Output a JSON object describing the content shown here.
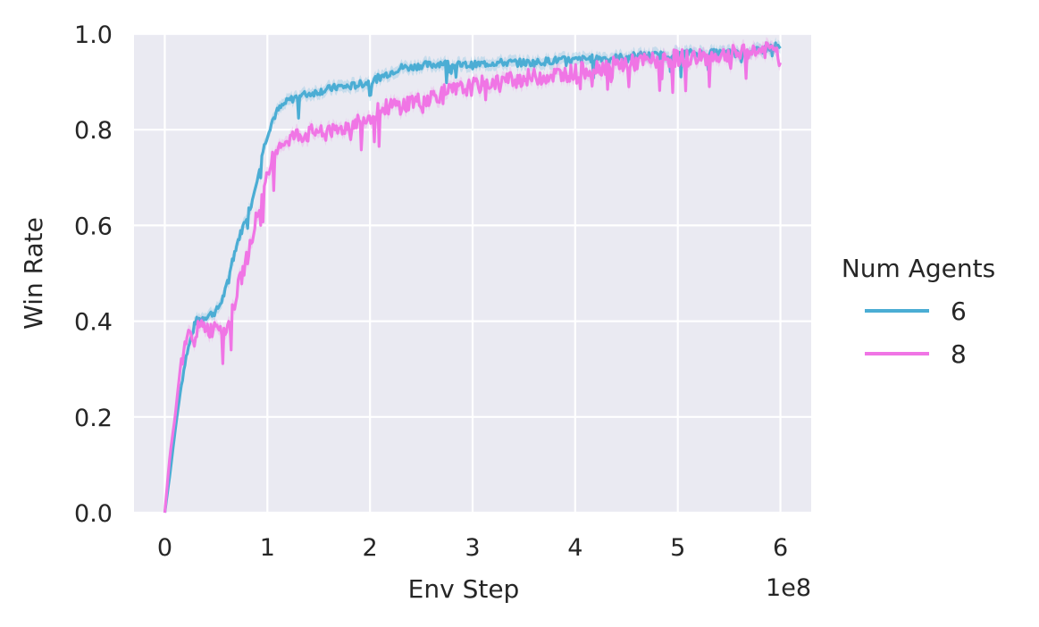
{
  "chart_data": {
    "type": "line",
    "title": "",
    "xlabel": "Env Step",
    "ylabel": "Win Rate",
    "x_offset_text": "1e8",
    "xlim": [
      -0.3,
      6.3
    ],
    "ylim": [
      0.0,
      1.0
    ],
    "x_ticks": [
      0,
      1,
      2,
      3,
      4,
      5,
      6
    ],
    "y_ticks": [
      0.0,
      0.2,
      0.4,
      0.6,
      0.8,
      1.0
    ],
    "x_tick_labels": [
      "0",
      "1",
      "2",
      "3",
      "4",
      "5",
      "6"
    ],
    "y_tick_labels": [
      "0.0",
      "0.2",
      "0.4",
      "0.6",
      "0.8",
      "1.0"
    ],
    "grid": true,
    "background": "#eaeaf2",
    "legend": {
      "title": "Num Agents",
      "placement": "right-outside",
      "entries": [
        "6",
        "8"
      ]
    },
    "series": [
      {
        "name": "6",
        "color": "#4badd4",
        "x": [
          0,
          0.05,
          0.1,
          0.15,
          0.2,
          0.25,
          0.3,
          0.4,
          0.5,
          0.55,
          0.6,
          0.65,
          0.7,
          0.8,
          0.85,
          0.9,
          0.95,
          1.0,
          1.05,
          1.1,
          1.15,
          1.2,
          1.3,
          1.4,
          1.5,
          1.6,
          1.7,
          1.8,
          1.9,
          2.0,
          2.1,
          2.2,
          2.3,
          2.4,
          2.5,
          2.6,
          2.7,
          2.8,
          3.0,
          3.2,
          3.4,
          3.6,
          3.8,
          4.0,
          4.2,
          4.4,
          4.6,
          4.8,
          5.0,
          5.2,
          5.4,
          5.6,
          5.8,
          5.95,
          6.0
        ],
        "y": [
          0.0,
          0.08,
          0.17,
          0.25,
          0.32,
          0.36,
          0.4,
          0.41,
          0.42,
          0.44,
          0.47,
          0.52,
          0.56,
          0.62,
          0.65,
          0.7,
          0.75,
          0.79,
          0.82,
          0.84,
          0.85,
          0.86,
          0.87,
          0.875,
          0.88,
          0.885,
          0.89,
          0.89,
          0.895,
          0.9,
          0.91,
          0.92,
          0.93,
          0.93,
          0.935,
          0.935,
          0.94,
          0.935,
          0.935,
          0.94,
          0.94,
          0.94,
          0.945,
          0.945,
          0.95,
          0.95,
          0.955,
          0.955,
          0.96,
          0.96,
          0.96,
          0.96,
          0.965,
          0.975,
          0.97
        ]
      },
      {
        "name": "8",
        "color": "#f075e5",
        "x": [
          0,
          0.05,
          0.1,
          0.15,
          0.2,
          0.25,
          0.3,
          0.4,
          0.45,
          0.5,
          0.55,
          0.6,
          0.65,
          0.7,
          0.8,
          0.85,
          0.9,
          0.95,
          1.0,
          1.05,
          1.1,
          1.2,
          1.3,
          1.4,
          1.5,
          1.55,
          1.6,
          1.65,
          1.7,
          1.8,
          1.9,
          2.0,
          2.1,
          2.2,
          2.3,
          2.4,
          2.5,
          2.6,
          2.8,
          3.0,
          3.2,
          3.4,
          3.6,
          3.8,
          4.0,
          4.2,
          4.4,
          4.6,
          4.8,
          5.0,
          5.2,
          5.4,
          5.6,
          5.8,
          5.95,
          6.0
        ],
        "y": [
          0.0,
          0.12,
          0.2,
          0.3,
          0.36,
          0.37,
          0.38,
          0.39,
          0.38,
          0.4,
          0.39,
          0.38,
          0.41,
          0.46,
          0.53,
          0.58,
          0.62,
          0.66,
          0.7,
          0.74,
          0.77,
          0.78,
          0.79,
          0.79,
          0.8,
          0.78,
          0.81,
          0.79,
          0.8,
          0.81,
          0.82,
          0.83,
          0.84,
          0.85,
          0.85,
          0.86,
          0.86,
          0.87,
          0.88,
          0.89,
          0.9,
          0.905,
          0.91,
          0.915,
          0.92,
          0.93,
          0.935,
          0.94,
          0.945,
          0.95,
          0.95,
          0.955,
          0.96,
          0.965,
          0.97,
          0.94
        ]
      }
    ]
  }
}
